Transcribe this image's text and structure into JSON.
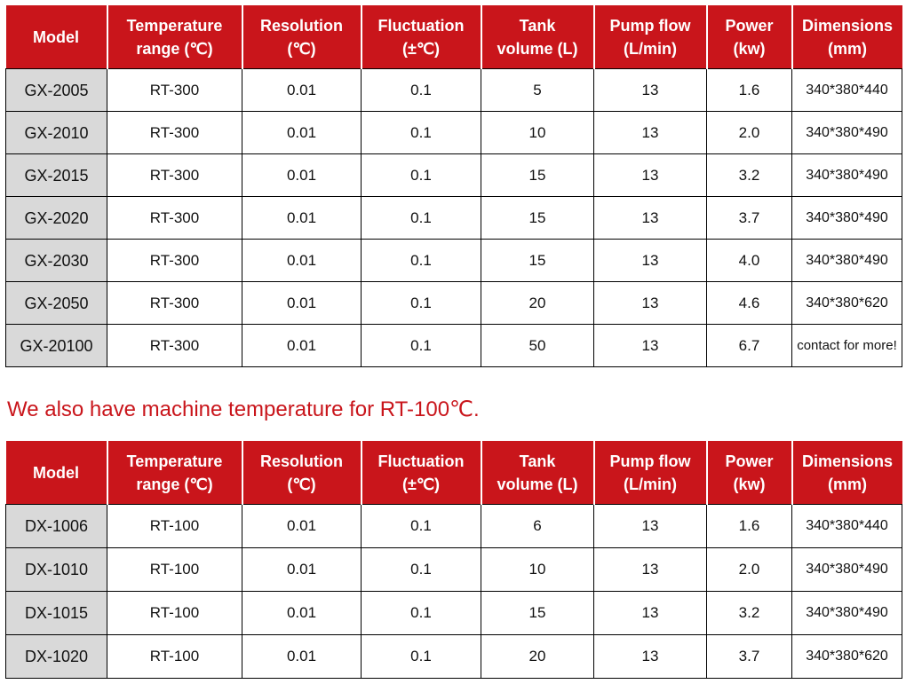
{
  "headers": [
    [
      "Temperature",
      "range (℃)"
    ],
    [
      "Resolution",
      "(℃)"
    ],
    [
      "Fluctuation",
      "(±℃)"
    ],
    [
      "Tank",
      "volume (L)"
    ],
    [
      "Pump flow",
      "(L/min)"
    ],
    [
      "Power",
      "(kw)"
    ],
    [
      "Dimensions",
      "(mm)"
    ]
  ],
  "model_header": "Model",
  "table1": {
    "rows": [
      [
        "GX-2005",
        "RT-300",
        "0.01",
        "0.1",
        "5",
        "13",
        "1.6",
        "340*380*440"
      ],
      [
        "GX-2010",
        "RT-300",
        "0.01",
        "0.1",
        "10",
        "13",
        "2.0",
        "340*380*490"
      ],
      [
        "GX-2015",
        "RT-300",
        "0.01",
        "0.1",
        "15",
        "13",
        "3.2",
        "340*380*490"
      ],
      [
        "GX-2020",
        "RT-300",
        "0.01",
        "0.1",
        "15",
        "13",
        "3.7",
        "340*380*490"
      ],
      [
        "GX-2030",
        "RT-300",
        "0.01",
        "0.1",
        "15",
        "13",
        "4.0",
        "340*380*490"
      ],
      [
        "GX-2050",
        "RT-300",
        "0.01",
        "0.1",
        "20",
        "13",
        "4.6",
        "340*380*620"
      ],
      [
        "GX-20100",
        "RT-300",
        "0.01",
        "0.1",
        "50",
        "13",
        "6.7",
        "contact for more!"
      ]
    ]
  },
  "note": "We also have machine temperature for RT-100℃.",
  "table2": {
    "rows": [
      [
        "DX-1006",
        "RT-100",
        "0.01",
        "0.1",
        "6",
        "13",
        "1.6",
        "340*380*440"
      ],
      [
        "DX-1010",
        "RT-100",
        "0.01",
        "0.1",
        "10",
        "13",
        "2.0",
        "340*380*490"
      ],
      [
        "DX-1015",
        "RT-100",
        "0.01",
        "0.1",
        "15",
        "13",
        "3.2",
        "340*380*490"
      ],
      [
        "DX-1020",
        "RT-100",
        "0.01",
        "0.1",
        "20",
        "13",
        "3.7",
        "340*380*620"
      ]
    ]
  },
  "colors": {
    "header_bg": "#c9151b",
    "note_text": "#c9151b",
    "model_cell_bg": "#d9d9d9"
  }
}
